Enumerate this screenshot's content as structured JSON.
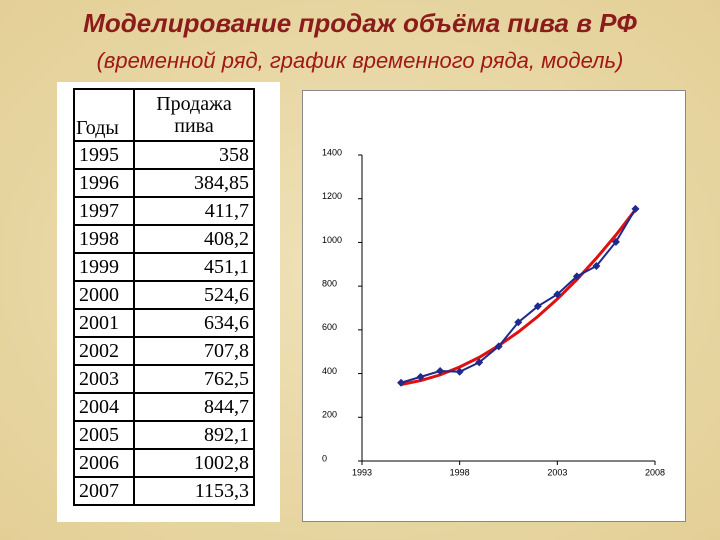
{
  "header": {
    "title": "Моделирование продаж объёма  пива в РФ",
    "subtitle": "(временной ряд, график временного ряда, модель)"
  },
  "table": {
    "columns": [
      "Годы",
      "Продажа пива"
    ],
    "rows": [
      [
        "1995",
        "358"
      ],
      [
        "1996",
        "384,85"
      ],
      [
        "1997",
        "411,7"
      ],
      [
        "1998",
        "408,2"
      ],
      [
        "1999",
        "451,1"
      ],
      [
        "2000",
        "524,6"
      ],
      [
        "2001",
        "634,6"
      ],
      [
        "2002",
        "707,8"
      ],
      [
        "2003",
        "762,5"
      ],
      [
        "2004",
        "844,7"
      ],
      [
        "2005",
        "892,1"
      ],
      [
        "2006",
        "1002,8"
      ],
      [
        "2007",
        "1153,3"
      ]
    ]
  },
  "chart_data": {
    "type": "line",
    "x": [
      1995,
      1996,
      1997,
      1998,
      1999,
      2000,
      2001,
      2002,
      2003,
      2004,
      2005,
      2006,
      2007
    ],
    "series": [
      {
        "color": "#1f2a8c",
        "marker": "diamond",
        "values": [
          358,
          384.85,
          411.7,
          408.2,
          451.1,
          524.6,
          634.6,
          707.8,
          762.5,
          844.7,
          892.1,
          1002.8,
          1153.3
        ]
      },
      {
        "color": "#e01010",
        "marker": "none",
        "values": [
          350,
          368,
          394,
          430,
          474,
          528,
          590,
          661,
          741,
          830,
          928,
          1034,
          1150
        ]
      }
    ],
    "xlim": [
      1993,
      2008
    ],
    "xticks": [
      1993,
      1998,
      2003,
      2008
    ],
    "ylim": [
      0,
      1400
    ],
    "yticks": [
      0,
      200,
      400,
      600,
      800,
      1000,
      1200,
      1400
    ]
  }
}
